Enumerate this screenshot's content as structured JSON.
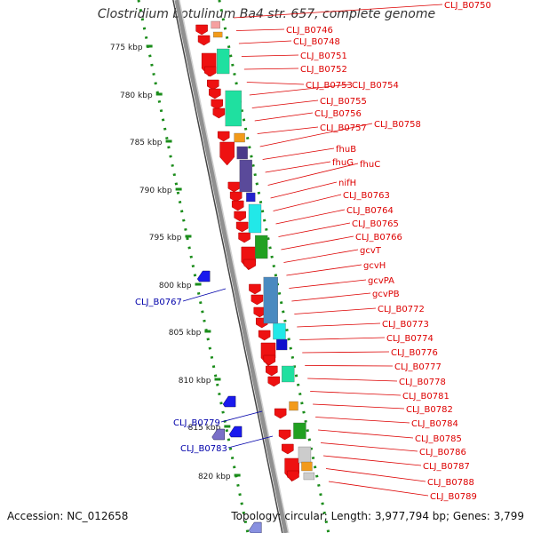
{
  "header": {
    "title": "Clostridium botulinum Ba4 str. 657, complete genome"
  },
  "footer": {
    "accession": "Accession: NC_012658",
    "summary": "Topology: circular; Length: 3,977,794 bp; Genes: 3,799"
  },
  "ruler": {
    "ticks": [
      "775 kbp",
      "780 kbp",
      "785 kbp",
      "790 kbp",
      "795 kbp",
      "800 kbp",
      "805 kbp",
      "810 kbp",
      "815 kbp",
      "820 kbp"
    ]
  },
  "colors": {
    "forward_label": "#dd0000",
    "reverse_label": "#0000aa",
    "backbone": "#909090",
    "ruler_dots": "#1a8c1a"
  },
  "forward_labels": [
    "CLJ_B0750",
    "CLJ_B0746",
    "CLJ_B0748",
    "CLJ_B0751",
    "CLJ_B0752",
    "CLJ_B0753",
    "CLJ_B0754",
    "CLJ_B0755",
    "CLJ_B0756",
    "CLJ_B0757",
    "CLJ_B0758",
    "fhuB",
    "fhuG",
    "fhuC",
    "nifH",
    "CLJ_B0763",
    "CLJ_B0764",
    "CLJ_B0765",
    "CLJ_B0766",
    "gcvT",
    "gcvH",
    "gcvPA",
    "gcvPB",
    "CLJ_B0772",
    "CLJ_B0773",
    "CLJ_B0774",
    "CLJ_B0776",
    "CLJ_B0777",
    "CLJ_B0778",
    "CLJ_B0781",
    "CLJ_B0782",
    "CLJ_B0784",
    "CLJ_B0785",
    "CLJ_B0786",
    "CLJ_B0787",
    "CLJ_B0788",
    "CLJ_B0789"
  ],
  "reverse_labels": [
    "CLJ_B0767",
    "CLJ_B0779",
    "CLJ_B0783"
  ]
}
